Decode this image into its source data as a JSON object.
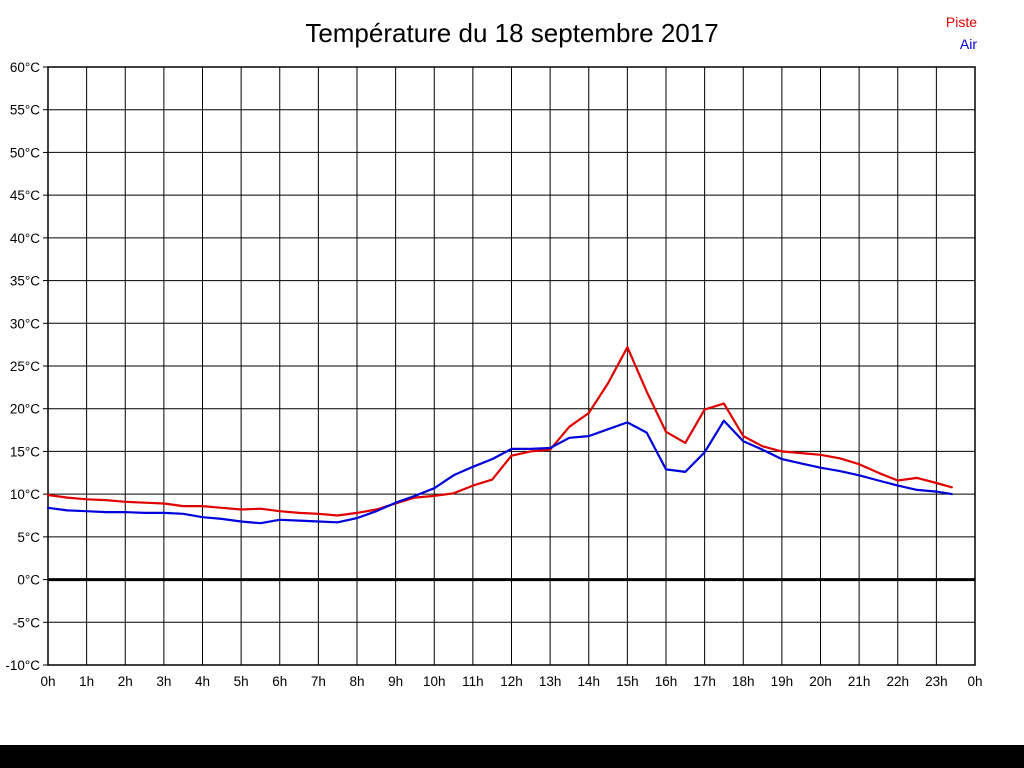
{
  "title": "Température du 18 septembre 2017",
  "legend": {
    "items": [
      {
        "label": "Piste",
        "color": "#e00000"
      },
      {
        "label": "Air",
        "color": "#0000dd"
      }
    ]
  },
  "chart_data": {
    "type": "line",
    "title": "Température du 18 septembre 2017",
    "xlabel": "",
    "ylabel": "",
    "xlim": [
      0,
      24
    ],
    "ylim": [
      -10,
      60
    ],
    "y_tick_step": 5,
    "grid": true,
    "grid_color": "#000000",
    "zero_line_bold": true,
    "legend_position": "top-right",
    "x_tick_labels": [
      "0h",
      "1h",
      "2h",
      "3h",
      "4h",
      "5h",
      "6h",
      "7h",
      "8h",
      "9h",
      "10h",
      "11h",
      "12h",
      "13h",
      "14h",
      "15h",
      "16h",
      "17h",
      "18h",
      "19h",
      "20h",
      "21h",
      "22h",
      "23h",
      "0h"
    ],
    "y_tick_labels": [
      "60°C",
      "55°C",
      "50°C",
      "45°C",
      "40°C",
      "35°C",
      "30°C",
      "25°C",
      "20°C",
      "15°C",
      "10°C",
      "5°C",
      "0°C",
      "-5°C",
      "-10°C"
    ],
    "y_tick_values": [
      60,
      55,
      50,
      45,
      40,
      35,
      30,
      25,
      20,
      15,
      10,
      5,
      0,
      -5,
      -10
    ],
    "x_tick_values": [
      0,
      1,
      2,
      3,
      4,
      5,
      6,
      7,
      8,
      9,
      10,
      11,
      12,
      13,
      14,
      15,
      16,
      17,
      18,
      19,
      20,
      21,
      22,
      23,
      24
    ],
    "x": [
      0,
      0.5,
      1,
      1.5,
      2,
      2.5,
      3,
      3.5,
      4,
      4.5,
      5,
      5.5,
      6,
      6.5,
      7,
      7.5,
      8,
      8.5,
      9,
      9.5,
      10,
      10.5,
      11,
      11.5,
      12,
      12.5,
      13,
      13.5,
      14,
      14.5,
      15,
      15.5,
      16,
      16.5,
      17,
      17.5,
      18,
      18.5,
      19,
      19.5,
      20,
      20.5,
      21,
      21.5,
      22,
      22.5,
      23,
      23.4
    ],
    "series": [
      {
        "name": "Piste",
        "color": "#e00000",
        "values": [
          9.9,
          9.6,
          9.4,
          9.3,
          9.1,
          9.0,
          8.9,
          8.6,
          8.6,
          8.4,
          8.2,
          8.3,
          8.0,
          7.8,
          7.7,
          7.5,
          7.8,
          8.2,
          8.9,
          9.6,
          9.8,
          10.1,
          11.0,
          11.7,
          14.5,
          15.0,
          15.2,
          17.9,
          19.5,
          23.0,
          27.2,
          22.0,
          17.3,
          16.0,
          19.9,
          20.6,
          16.8,
          15.6,
          15.0,
          14.8,
          14.6,
          14.2,
          13.5,
          12.5,
          11.6,
          11.9,
          11.3,
          10.8
        ]
      },
      {
        "name": "Air",
        "color": "#0000dd",
        "values": [
          8.4,
          8.1,
          8.0,
          7.9,
          7.9,
          7.8,
          7.8,
          7.7,
          7.3,
          7.1,
          6.8,
          6.6,
          7.0,
          6.9,
          6.8,
          6.7,
          7.2,
          8.0,
          9.0,
          9.8,
          10.7,
          12.2,
          13.2,
          14.1,
          15.3,
          15.3,
          15.4,
          16.6,
          16.8,
          17.6,
          18.4,
          17.2,
          12.9,
          12.6,
          14.9,
          18.6,
          16.2,
          15.2,
          14.1,
          13.6,
          13.1,
          12.7,
          12.2,
          11.6,
          11.0,
          10.5,
          10.3,
          10.0
        ]
      }
    ]
  }
}
